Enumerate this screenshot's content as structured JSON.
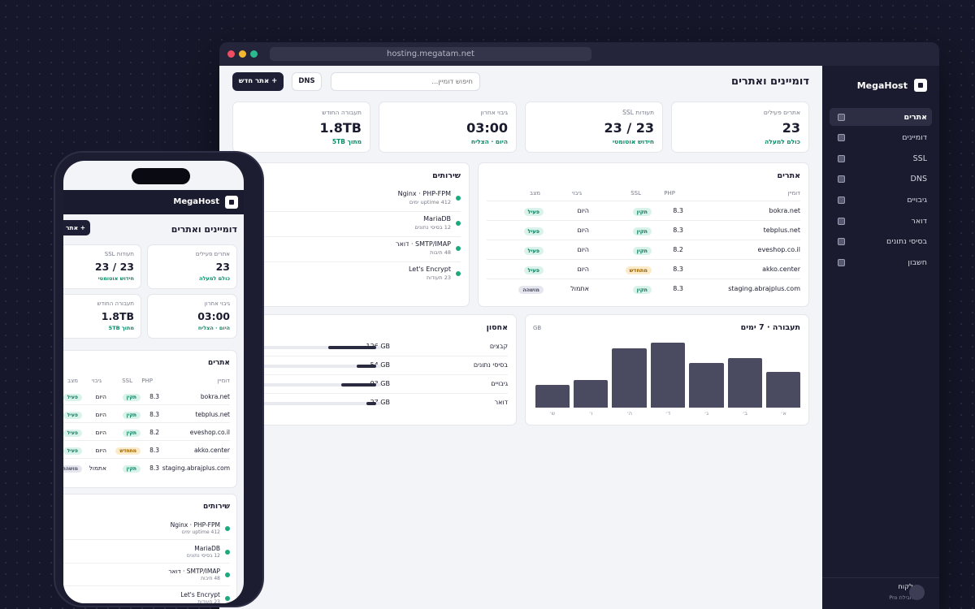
{
  "browser": {
    "url": "hosting.megatam.net"
  },
  "app": {
    "brand": "MegaHost",
    "page_title": "דומיינים ואתרים"
  },
  "toolbar": {
    "search_placeholder": "חיפוש דומיין...",
    "dns_label": "DNS",
    "new_site_label": "+ אתר חדש"
  },
  "sidebar": {
    "items": [
      {
        "label": "אתרים",
        "active": true
      },
      {
        "label": "דומיינים"
      },
      {
        "label": "SSL"
      },
      {
        "label": "DNS"
      },
      {
        "label": "גיבויים"
      },
      {
        "label": "דואר"
      },
      {
        "label": "בסיסי נתונים"
      },
      {
        "label": "חשבון"
      }
    ],
    "user": {
      "name": "לקוח",
      "plan": "חבילת Pro"
    }
  },
  "stats": [
    {
      "label": "אתרים פעילים",
      "value": "23",
      "sub": "כולם למעלה"
    },
    {
      "label": "תעודות SSL",
      "value": "23 / 23",
      "sub": "חידוש אוטומטי"
    },
    {
      "label": "גיבוי אחרון",
      "value": "03:00",
      "sub": "היום · הצליח"
    },
    {
      "label": "תעבורה החודש",
      "value": "1.8TB",
      "sub": "מתוך 5TB"
    }
  ],
  "sites": {
    "title": "אתרים",
    "headers": {
      "domain": "דומיין",
      "php": "PHP",
      "ssl": "SSL",
      "backup": "גיבוי",
      "status": "מצב"
    },
    "rows": [
      {
        "domain": "bokra.net",
        "php": "8.3",
        "ssl": "תקין",
        "backup": "היום",
        "status": "פעיל"
      },
      {
        "domain": "tebplus.net",
        "php": "8.3",
        "ssl": "תקין",
        "backup": "היום",
        "status": "פעיל"
      },
      {
        "domain": "eveshop.co.il",
        "php": "8.2",
        "ssl": "תקין",
        "backup": "היום",
        "status": "פעיל"
      },
      {
        "domain": "akko.center",
        "php": "8.3",
        "ssl": "מתחדש",
        "backup": "היום",
        "status": "פעיל"
      },
      {
        "domain": "staging.abrajplus.com",
        "php": "8.3",
        "ssl": "תקין",
        "backup": "אתמול",
        "status": "מושהה"
      }
    ]
  },
  "services": {
    "title": "שירותים",
    "items": [
      {
        "name": "Nginx · PHP-FPM",
        "sub": "uptime 412 ימים"
      },
      {
        "name": "MariaDB",
        "sub": "12 בסיסי נתונים"
      },
      {
        "name": "SMTP/IMAP · דואר",
        "sub": "48 תיבות"
      },
      {
        "name": "Let's Encrypt",
        "sub": "23 תעודות"
      }
    ]
  },
  "traffic": {
    "title": "תעבורה · 7 ימים",
    "unit": "GB"
  },
  "chart_data": {
    "type": "bar",
    "title": "תעבורה · 7 ימים",
    "ylabel": "GB",
    "categories": [
      "א׳",
      "ב׳",
      "ג׳",
      "ד׳",
      "ה׳",
      "ו׳",
      "ש׳"
    ],
    "values": [
      54,
      74,
      67,
      97,
      89,
      42,
      34
    ],
    "ylim": [
      0,
      100
    ]
  },
  "storage": {
    "title": "אחסון",
    "items": [
      {
        "label": "קבצים",
        "value": "126 GB",
        "fraction": 0.48
      },
      {
        "label": "בסיסי נתונים",
        "value": "54 GB",
        "fraction": 0.2
      },
      {
        "label": "גיבויים",
        "value": "93 GB",
        "fraction": 0.35
      },
      {
        "label": "דואר",
        "value": "27 GB",
        "fraction": 0.1
      }
    ]
  }
}
